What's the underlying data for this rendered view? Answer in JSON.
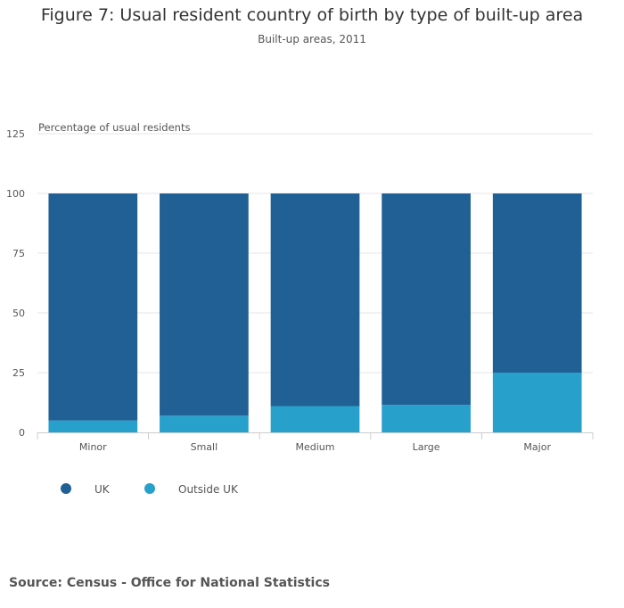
{
  "title": "Figure 7: Usual resident country of birth by type of built-up area",
  "subtitle": "Built-up areas, 2011",
  "source": "Source: Census - Office for National Statistics",
  "chart_data": {
    "type": "bar",
    "stacked": true,
    "categories": [
      "Minor",
      "Small",
      "Medium",
      "Large",
      "Major"
    ],
    "series": [
      {
        "name": "UK",
        "color": "#206095",
        "values": [
          95,
          93,
          89,
          88.5,
          75
        ]
      },
      {
        "name": "Outside UK",
        "color": "#27a0cc",
        "values": [
          5,
          7,
          11,
          11.5,
          25
        ]
      }
    ],
    "ylabel": "Percentage of usual residents",
    "ylim": [
      0,
      125
    ],
    "yticks": [
      0,
      25,
      50,
      75,
      100,
      125
    ],
    "legend_position": "bottom-left",
    "grid": true
  }
}
